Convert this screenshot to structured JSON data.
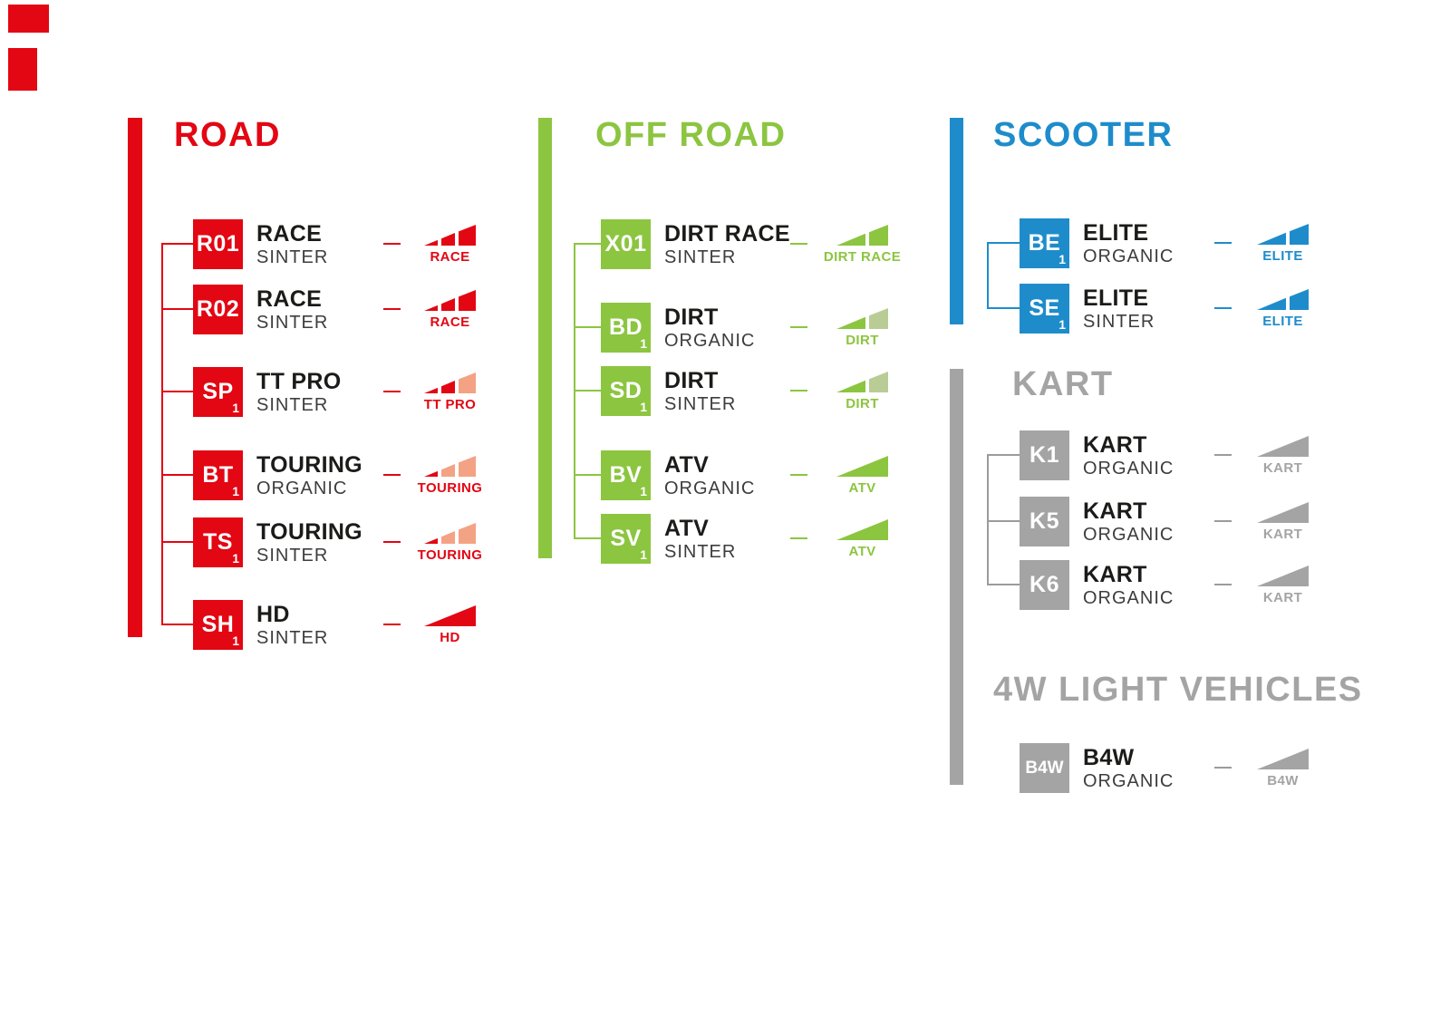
{
  "colors": {
    "road_red": "#e30613",
    "road_salmon": "#f4a284",
    "off_road_green": "#8cc540",
    "off_road_sage": "#b9cc95",
    "scooter_blue": "#1e8ccb",
    "gray": "#a5a4a4",
    "line_gray": "#9b9b9b",
    "name_text": "#1b1b19",
    "material_text": "#3d3d3c",
    "background": "#ffffff"
  },
  "sections": [
    {
      "id": "road",
      "title": "ROAD",
      "color": "#e30613",
      "line_color": "#e30613",
      "items": [
        {
          "code": "R01",
          "sub": "",
          "name": "RACE",
          "material": "SINTER",
          "icon": {
            "type": "seg3",
            "label": "RACE",
            "colors": [
              "#e30613",
              "#e30613",
              "#e30613"
            ]
          }
        },
        {
          "code": "R02",
          "sub": "",
          "name": "RACE",
          "material": "SINTER",
          "icon": {
            "type": "seg3",
            "label": "RACE",
            "colors": [
              "#e30613",
              "#e30613",
              "#e30613"
            ]
          }
        },
        {
          "code": "SP",
          "sub": "1",
          "name": "TT PRO",
          "material": "SINTER",
          "icon": {
            "type": "seg3",
            "label": "TT PRO",
            "colors": [
              "#e30613",
              "#e30613",
              "#f4a284"
            ]
          }
        },
        {
          "code": "BT",
          "sub": "1",
          "name": "TOURING",
          "material": "ORGANIC",
          "icon": {
            "type": "seg3",
            "label": "TOURING",
            "colors": [
              "#e30613",
              "#f4a284",
              "#f4a284"
            ]
          }
        },
        {
          "code": "TS",
          "sub": "1",
          "name": "TOURING",
          "material": "SINTER",
          "icon": {
            "type": "seg3",
            "label": "TOURING",
            "colors": [
              "#e30613",
              "#f4a284",
              "#f4a284"
            ]
          }
        },
        {
          "code": "SH",
          "sub": "1",
          "name": "HD",
          "material": "SINTER",
          "icon": {
            "type": "solid",
            "label": "HD",
            "colors": [
              "#e30613"
            ]
          }
        }
      ]
    },
    {
      "id": "off-road",
      "title": "OFF ROAD",
      "color": "#8cc540",
      "line_color": "#8cc540",
      "items": [
        {
          "code": "X01",
          "sub": "",
          "name": "DIRT RACE",
          "material": "SINTER",
          "icon": {
            "type": "seg2",
            "label": "DIRT RACE",
            "colors": [
              "#8cc540",
              "#8cc540"
            ]
          }
        },
        {
          "code": "BD",
          "sub": "1",
          "name": "DIRT",
          "material": "ORGANIC",
          "icon": {
            "type": "seg2",
            "label": "DIRT",
            "colors": [
              "#8cc540",
              "#b9cc95"
            ]
          }
        },
        {
          "code": "SD",
          "sub": "1",
          "name": "DIRT",
          "material": "SINTER",
          "icon": {
            "type": "seg2",
            "label": "DIRT",
            "colors": [
              "#8cc540",
              "#b9cc95"
            ]
          }
        },
        {
          "code": "BV",
          "sub": "1",
          "name": "ATV",
          "material": "ORGANIC",
          "icon": {
            "type": "solid",
            "label": "ATV",
            "colors": [
              "#8cc540"
            ]
          }
        },
        {
          "code": "SV",
          "sub": "1",
          "name": "ATV",
          "material": "SINTER",
          "icon": {
            "type": "solid",
            "label": "ATV",
            "colors": [
              "#8cc540"
            ]
          }
        }
      ]
    },
    {
      "id": "scooter",
      "title": "SCOOTER",
      "color": "#1e8ccb",
      "line_color": "#1e8ccb",
      "items": [
        {
          "code": "BE",
          "sub": "1",
          "name": "ELITE",
          "material": "ORGANIC",
          "icon": {
            "type": "seg2",
            "label": "ELITE",
            "colors": [
              "#1e8ccb",
              "#1e8ccb"
            ]
          }
        },
        {
          "code": "SE",
          "sub": "1",
          "name": "ELITE",
          "material": "SINTER",
          "icon": {
            "type": "seg2",
            "label": "ELITE",
            "colors": [
              "#1e8ccb",
              "#1e8ccb"
            ]
          }
        }
      ]
    },
    {
      "id": "kart",
      "title": "KART",
      "color": "#a5a4a4",
      "line_color": "#9b9b9b",
      "items": [
        {
          "code": "K1",
          "sub": "",
          "name": "KART",
          "material": "ORGANIC",
          "icon": {
            "type": "solid",
            "label": "KART",
            "colors": [
              "#a5a4a4"
            ]
          }
        },
        {
          "code": "K5",
          "sub": "",
          "name": "KART",
          "material": "ORGANIC",
          "icon": {
            "type": "solid",
            "label": "KART",
            "colors": [
              "#a5a4a4"
            ]
          }
        },
        {
          "code": "K6",
          "sub": "",
          "name": "KART",
          "material": "ORGANIC",
          "icon": {
            "type": "solid",
            "label": "KART",
            "colors": [
              "#a5a4a4"
            ]
          }
        }
      ]
    },
    {
      "id": "4w-light-vehicles",
      "title": "4W LIGHT VEHICLES",
      "color": "#a5a4a4",
      "line_color": "#9b9b9b",
      "items": [
        {
          "code": "B4W",
          "sub": "",
          "name": "B4W",
          "material": "ORGANIC",
          "icon": {
            "type": "solid",
            "label": "B4W",
            "colors": [
              "#a5a4a4"
            ]
          }
        }
      ]
    }
  ]
}
